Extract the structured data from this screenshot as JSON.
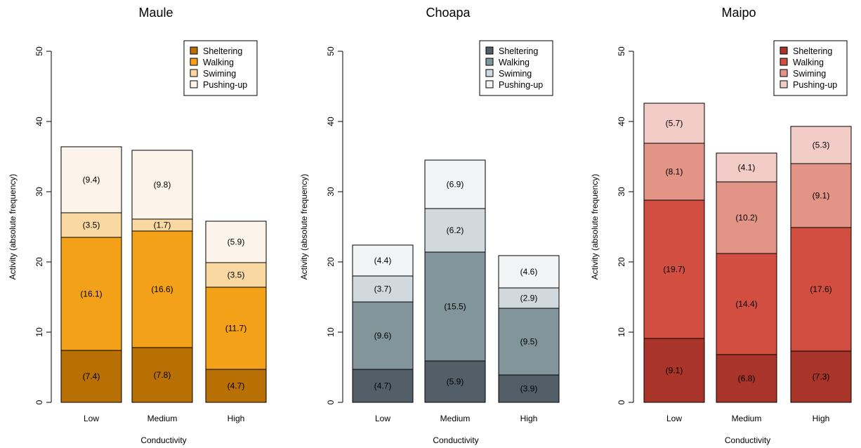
{
  "chart_data": [
    {
      "type": "bar",
      "stacked": true,
      "title": "Maule",
      "xlabel": "Conductivity",
      "ylabel": "Activity (absolute frequency)",
      "ylim": [
        0,
        50
      ],
      "yticks": [
        0,
        10,
        20,
        30,
        40,
        50
      ],
      "categories": [
        "Low",
        "Medium",
        "High"
      ],
      "legend_position": "top-right",
      "series": [
        {
          "name": "Sheltering",
          "color": "#b87005",
          "values": [
            7.4,
            7.8,
            4.7
          ],
          "labels": [
            "(7.4)",
            "(7.8)",
            "(4.7)"
          ]
        },
        {
          "name": "Walking",
          "color": "#f4a11a",
          "values": [
            16.1,
            16.6,
            11.7
          ],
          "labels": [
            "(16.1)",
            "(16.6)",
            "(11.7)"
          ]
        },
        {
          "name": "Swiming",
          "color": "#f9d9a1",
          "values": [
            3.5,
            1.7,
            3.5
          ],
          "labels": [
            "(3.5)",
            "(1.7)",
            "(3.5)"
          ]
        },
        {
          "name": "Pushing-up",
          "color": "#fcf4ea",
          "values": [
            9.4,
            9.8,
            5.9
          ],
          "labels": [
            "(9.4)",
            "(9.8)",
            "(5.9)"
          ]
        }
      ]
    },
    {
      "type": "bar",
      "stacked": true,
      "title": "Choapa",
      "xlabel": "Conductivity",
      "ylabel": "Activity (absolute frequency)",
      "ylim": [
        0,
        50
      ],
      "yticks": [
        0,
        10,
        20,
        30,
        40,
        50
      ],
      "categories": [
        "Low",
        "Medium",
        "High"
      ],
      "legend_position": "top-right",
      "series": [
        {
          "name": "Sheltering",
          "color": "#535f68",
          "values": [
            4.7,
            5.9,
            3.9
          ],
          "labels": [
            "(4.7)",
            "(5.9)",
            "(3.9)"
          ]
        },
        {
          "name": "Walking",
          "color": "#82959a",
          "values": [
            9.6,
            15.5,
            9.5
          ],
          "labels": [
            "(9.6)",
            "(15.5)",
            "(9.5)"
          ]
        },
        {
          "name": "Swiming",
          "color": "#d2d9de",
          "values": [
            3.7,
            6.2,
            2.9
          ],
          "labels": [
            "(3.7)",
            "(6.2)",
            "(2.9)"
          ]
        },
        {
          "name": "Pushing-up",
          "color": "#f2f3f5",
          "values": [
            4.4,
            6.9,
            4.6
          ],
          "labels": [
            "(4.4)",
            "(6.9)",
            "(4.6)"
          ]
        }
      ]
    },
    {
      "type": "bar",
      "stacked": true,
      "title": "Maipo",
      "xlabel": "Conductivity",
      "ylabel": "Activity (absolute frequency)",
      "ylim": [
        0,
        50
      ],
      "yticks": [
        0,
        10,
        20,
        30,
        40,
        50
      ],
      "categories": [
        "Low",
        "Medium",
        "High"
      ],
      "legend_position": "top-right",
      "series": [
        {
          "name": "Sheltering",
          "color": "#a8342a",
          "values": [
            9.1,
            6.8,
            7.3
          ],
          "labels": [
            "(9.1)",
            "(6.8)",
            "(7.3)"
          ]
        },
        {
          "name": "Walking",
          "color": "#d24e40",
          "values": [
            19.7,
            14.4,
            17.6
          ],
          "labels": [
            "(19.7)",
            "(14.4)",
            "(17.6)"
          ]
        },
        {
          "name": "Swiming",
          "color": "#e29586",
          "values": [
            8.1,
            10.2,
            9.1
          ],
          "labels": [
            "(8.1)",
            "(10.2)",
            "(9.1)"
          ]
        },
        {
          "name": "Pushing-up",
          "color": "#f2cdc8",
          "values": [
            5.7,
            4.1,
            5.3
          ],
          "labels": [
            "(5.7)",
            "(4.1)",
            "(5.3)"
          ]
        }
      ]
    }
  ]
}
